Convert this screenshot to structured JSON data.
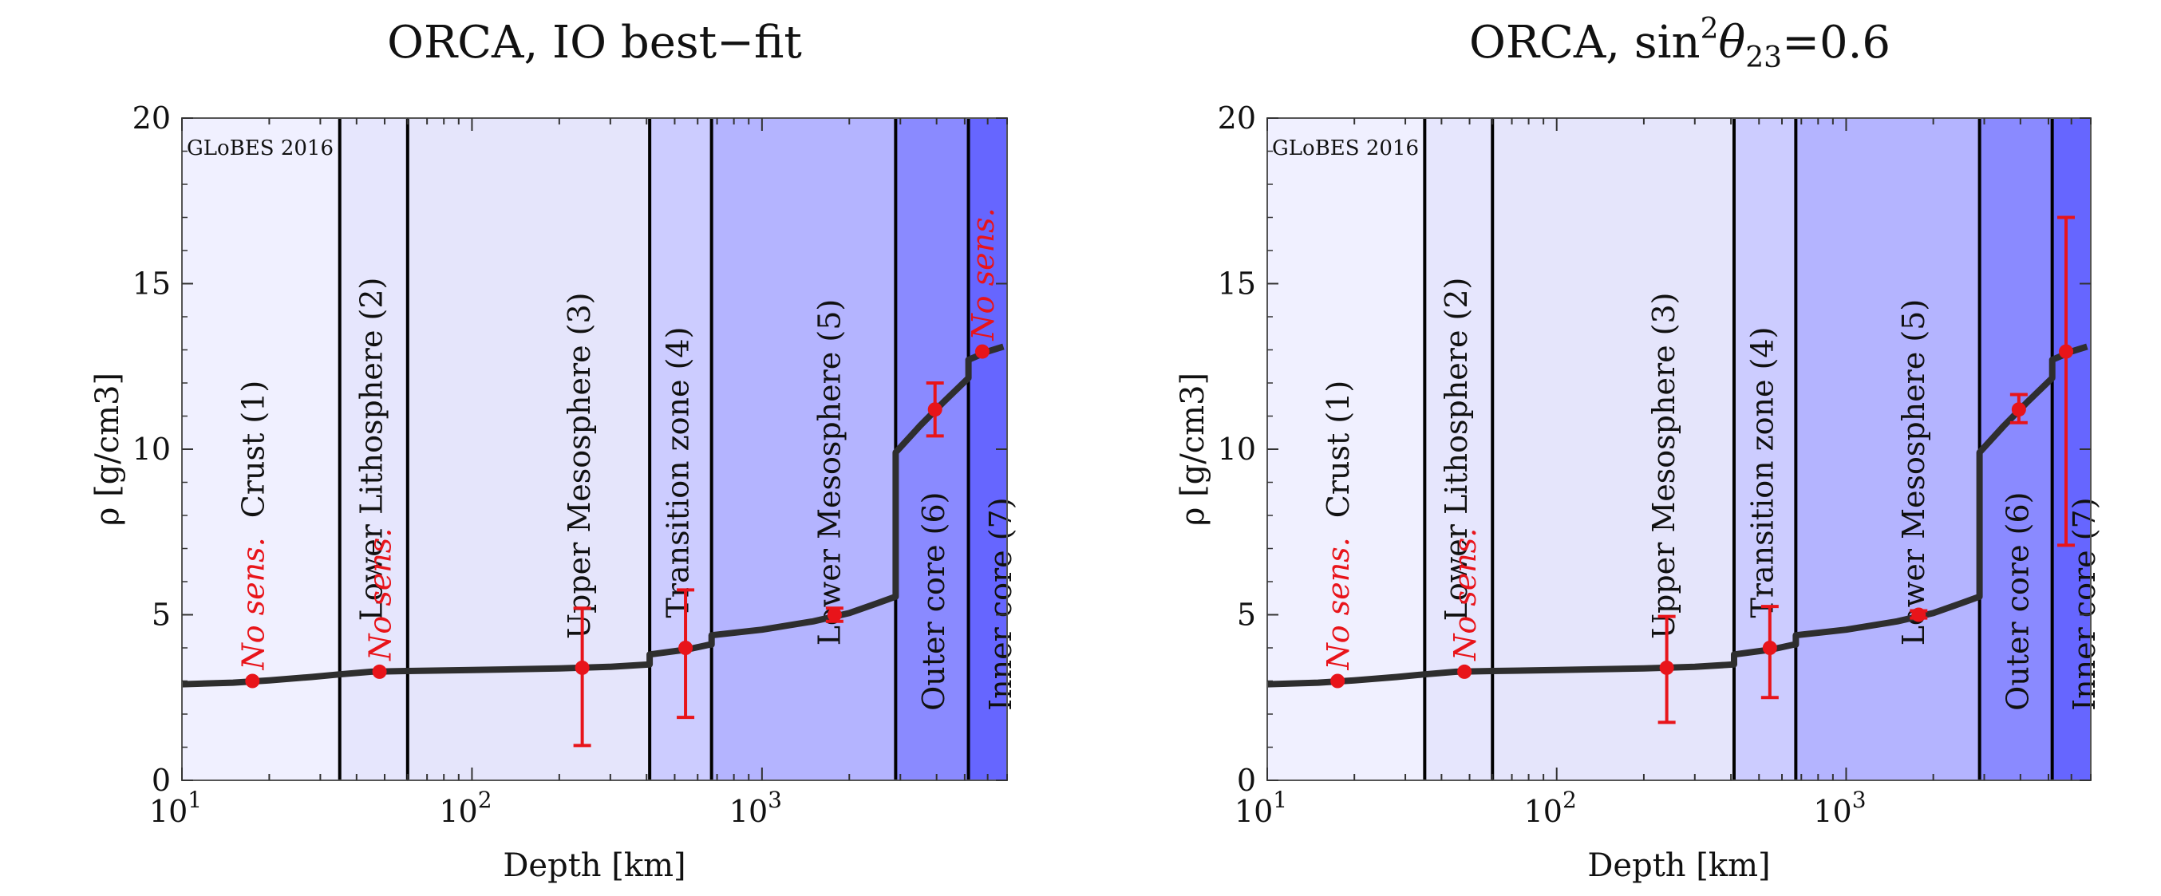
{
  "chart_data": [
    {
      "type": "line",
      "title_main": "ORCA, IO best−fit",
      "xlabel": "Depth [km]",
      "ylabel": "ρ [g/cm3]",
      "xscale": "log",
      "xlim": [
        10,
        7000
      ],
      "ylim": [
        0,
        20
      ],
      "yticks": [
        0,
        5,
        10,
        15,
        20
      ],
      "xticks": [
        {
          "value": 10,
          "label": "10",
          "exp": "1"
        },
        {
          "value": 100,
          "label": "10",
          "exp": "2"
        },
        {
          "value": 1000,
          "label": "10",
          "exp": "3"
        }
      ],
      "watermark": "GLoBES 2016",
      "layers": [
        {
          "name": "Crust (1)",
          "from": 10,
          "to": 35,
          "color": "#f0f0ff",
          "label_x": 18,
          "label_y": 10
        },
        {
          "name": "Lower Lithosphere (2)",
          "from": 35,
          "to": 60,
          "color": "#e6e6fd",
          "label_x": 46,
          "label_y": 10
        },
        {
          "name": "Upper Mesosphere (3)",
          "from": 60,
          "to": 410,
          "color": "#e5e5fb",
          "label_x": 240,
          "label_y": 9.5
        },
        {
          "name": "Transition zone (4)",
          "from": 410,
          "to": 670,
          "color": "#ccccff",
          "label_x": 525,
          "label_y": 9.3
        },
        {
          "name": "Lower Mesosphere (5)",
          "from": 670,
          "to": 2890,
          "color": "#b4b4ff",
          "label_x": 1750,
          "label_y": 9.3
        },
        {
          "name": "Outer core (6)",
          "from": 2890,
          "to": 5150,
          "color": "#8a8aff",
          "label_x": 4000,
          "label_y": 2.1
        },
        {
          "name": "Inner core (7)",
          "from": 5150,
          "to": 7000,
          "color": "#6666ff",
          "label_x": 6800,
          "label_y": 2.1
        }
      ],
      "profile": [
        {
          "x": 10,
          "y": 2.9
        },
        {
          "x": 15,
          "y": 2.95
        },
        {
          "x": 20,
          "y": 3.02
        },
        {
          "x": 28,
          "y": 3.12
        },
        {
          "x": 35,
          "y": 3.2
        },
        {
          "x": 45,
          "y": 3.28
        },
        {
          "x": 60,
          "y": 3.3
        },
        {
          "x": 100,
          "y": 3.33
        },
        {
          "x": 200,
          "y": 3.38
        },
        {
          "x": 300,
          "y": 3.43
        },
        {
          "x": 410,
          "y": 3.5
        },
        {
          "x": 410,
          "y": 3.8
        },
        {
          "x": 550,
          "y": 3.95
        },
        {
          "x": 660,
          "y": 4.1
        },
        {
          "x": 670,
          "y": 4.1
        },
        {
          "x": 670,
          "y": 4.38
        },
        {
          "x": 1000,
          "y": 4.55
        },
        {
          "x": 1500,
          "y": 4.8
        },
        {
          "x": 2000,
          "y": 5.05
        },
        {
          "x": 2500,
          "y": 5.35
        },
        {
          "x": 2890,
          "y": 5.55
        },
        {
          "x": 2890,
          "y": 9.9
        },
        {
          "x": 3500,
          "y": 10.7
        },
        {
          "x": 4200,
          "y": 11.4
        },
        {
          "x": 5150,
          "y": 12.15
        },
        {
          "x": 5150,
          "y": 12.7
        },
        {
          "x": 6000,
          "y": 12.95
        },
        {
          "x": 6800,
          "y": 13.1
        }
      ],
      "points": [
        {
          "x": 17.5,
          "y": 3.0,
          "lo": null,
          "hi": null,
          "no_sens": true
        },
        {
          "x": 48,
          "y": 3.28,
          "lo": null,
          "hi": null,
          "no_sens": true
        },
        {
          "x": 240,
          "y": 3.4,
          "lo": 1.05,
          "hi": 5.2
        },
        {
          "x": 545,
          "y": 4.0,
          "lo": 1.9,
          "hi": 5.75
        },
        {
          "x": 1780,
          "y": 5.0,
          "lo": 4.8,
          "hi": 5.2
        },
        {
          "x": 3950,
          "y": 11.2,
          "lo": 10.4,
          "hi": 12.0
        },
        {
          "x": 5750,
          "y": 12.95,
          "lo": null,
          "hi": null,
          "no_sens": true
        }
      ],
      "no_sens_label": "No sens."
    },
    {
      "type": "line",
      "title_main": "ORCA, sin",
      "title_sup": "2",
      "title_theta": "θ",
      "title_sub": "23",
      "title_tail": "=0.6",
      "xlabel": "Depth [km]",
      "ylabel": "ρ [g/cm3]",
      "xscale": "log",
      "xlim": [
        10,
        7000
      ],
      "ylim": [
        0,
        20
      ],
      "yticks": [
        0,
        5,
        10,
        15,
        20
      ],
      "xticks": [
        {
          "value": 10,
          "label": "10",
          "exp": "1"
        },
        {
          "value": 100,
          "label": "10",
          "exp": "2"
        },
        {
          "value": 1000,
          "label": "10",
          "exp": "3"
        }
      ],
      "watermark": "GLoBES 2016",
      "layers": [
        {
          "name": "Crust (1)",
          "from": 10,
          "to": 35,
          "color": "#f0f0ff",
          "label_x": 18,
          "label_y": 10
        },
        {
          "name": "Lower Lithosphere (2)",
          "from": 35,
          "to": 60,
          "color": "#e6e6fd",
          "label_x": 46,
          "label_y": 10
        },
        {
          "name": "Upper Mesosphere (3)",
          "from": 60,
          "to": 410,
          "color": "#e5e5fb",
          "label_x": 240,
          "label_y": 9.5
        },
        {
          "name": "Transition zone (4)",
          "from": 410,
          "to": 670,
          "color": "#ccccff",
          "label_x": 525,
          "label_y": 9.3
        },
        {
          "name": "Lower Mesosphere (5)",
          "from": 670,
          "to": 2890,
          "color": "#b4b4ff",
          "label_x": 1750,
          "label_y": 9.3
        },
        {
          "name": "Outer core (6)",
          "from": 2890,
          "to": 5150,
          "color": "#8a8aff",
          "label_x": 4000,
          "label_y": 2.1
        },
        {
          "name": "Inner core (7)",
          "from": 5150,
          "to": 7000,
          "color": "#6666ff",
          "label_x": 6800,
          "label_y": 2.1
        }
      ],
      "profile": [
        {
          "x": 10,
          "y": 2.9
        },
        {
          "x": 15,
          "y": 2.95
        },
        {
          "x": 20,
          "y": 3.02
        },
        {
          "x": 28,
          "y": 3.12
        },
        {
          "x": 35,
          "y": 3.2
        },
        {
          "x": 45,
          "y": 3.28
        },
        {
          "x": 60,
          "y": 3.3
        },
        {
          "x": 100,
          "y": 3.33
        },
        {
          "x": 200,
          "y": 3.38
        },
        {
          "x": 300,
          "y": 3.43
        },
        {
          "x": 410,
          "y": 3.5
        },
        {
          "x": 410,
          "y": 3.8
        },
        {
          "x": 550,
          "y": 3.95
        },
        {
          "x": 660,
          "y": 4.1
        },
        {
          "x": 670,
          "y": 4.1
        },
        {
          "x": 670,
          "y": 4.38
        },
        {
          "x": 1000,
          "y": 4.55
        },
        {
          "x": 1500,
          "y": 4.8
        },
        {
          "x": 2000,
          "y": 5.05
        },
        {
          "x": 2500,
          "y": 5.35
        },
        {
          "x": 2890,
          "y": 5.55
        },
        {
          "x": 2890,
          "y": 9.9
        },
        {
          "x": 3500,
          "y": 10.7
        },
        {
          "x": 4200,
          "y": 11.4
        },
        {
          "x": 5150,
          "y": 12.15
        },
        {
          "x": 5150,
          "y": 12.7
        },
        {
          "x": 6000,
          "y": 12.95
        },
        {
          "x": 6800,
          "y": 13.1
        }
      ],
      "points": [
        {
          "x": 17.5,
          "y": 3.0,
          "lo": null,
          "hi": null,
          "no_sens": true
        },
        {
          "x": 48,
          "y": 3.28,
          "lo": null,
          "hi": null,
          "no_sens": true
        },
        {
          "x": 240,
          "y": 3.4,
          "lo": 1.75,
          "hi": 4.95
        },
        {
          "x": 545,
          "y": 4.0,
          "lo": 2.5,
          "hi": 5.25
        },
        {
          "x": 1780,
          "y": 5.0,
          "lo": 4.9,
          "hi": 5.12
        },
        {
          "x": 3950,
          "y": 11.2,
          "lo": 10.8,
          "hi": 11.65
        },
        {
          "x": 5750,
          "y": 12.95,
          "lo": 7.1,
          "hi": 17.0
        }
      ],
      "no_sens_label": "No sens."
    }
  ]
}
